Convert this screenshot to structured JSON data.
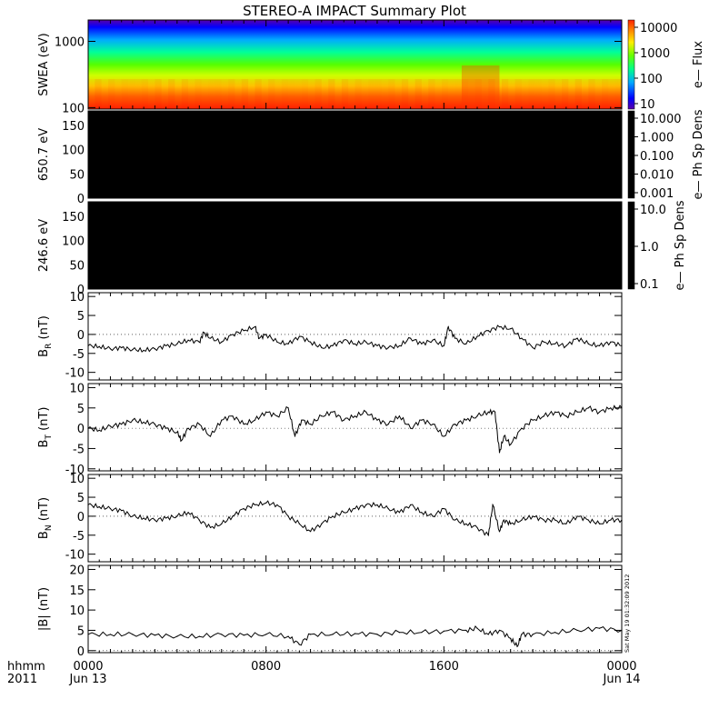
{
  "title": "STEREO-A IMPACT Summary Plot",
  "timestamp": "Sat May 19 01:32:09 2012",
  "time_axis": {
    "row1_label": "hhmm",
    "row2_label": "2011",
    "ticks": [
      {
        "hour": 0,
        "line1": "0000",
        "line2": "Jun 13"
      },
      {
        "hour": 8,
        "line1": "0800",
        "line2": ""
      },
      {
        "hour": 16,
        "line1": "1600",
        "line2": ""
      },
      {
        "hour": 24,
        "line1": "0000",
        "line2": "Jun 14"
      }
    ],
    "range_hours": [
      0,
      24
    ]
  },
  "colorbars": {
    "swea": {
      "label": "e— Flux",
      "ticks": [
        "10000",
        "1000",
        "100",
        "10"
      ]
    },
    "pad650": {
      "label": "e— Ph Sp Dens",
      "ticks": [
        "10.000",
        "1.000",
        "0.100",
        "0.010",
        "0.001"
      ]
    },
    "pad246": {
      "label": "e— Ph Sp Dens",
      "ticks": [
        "10.0",
        "1.0",
        "0.1"
      ]
    }
  },
  "colors": {
    "spectrogram_black": "#000000",
    "line": "#000000",
    "rainbow": [
      "#7a00b8",
      "#0000ff",
      "#00b4ff",
      "#00ff88",
      "#66ff00",
      "#e6ff00",
      "#ffaa00",
      "#ff3300"
    ]
  },
  "chart_data": [
    {
      "type": "heatmap",
      "panel": "swea",
      "ylabel": "SWEA (eV)",
      "yscale": "log",
      "ylim": [
        95,
        2100
      ],
      "yticks": [
        "100",
        "1000"
      ],
      "note": "energy spectrogram, flux colour-coded"
    },
    {
      "type": "heatmap",
      "panel": "pad650",
      "ylabel": "650.7 eV",
      "ylim": [
        0,
        180
      ],
      "yticks": [
        "0",
        "50",
        "100",
        "150"
      ]
    },
    {
      "type": "heatmap",
      "panel": "pad246",
      "ylabel": "246.6 eV",
      "ylim": [
        0,
        180
      ],
      "yticks": [
        "0",
        "50",
        "100",
        "150"
      ]
    },
    {
      "type": "line",
      "panel": "br",
      "ylabel": "B",
      "ylabel_sub": "R",
      "ylabel_unit": " (nT)",
      "ylim": [
        -12,
        11
      ],
      "yticks": [
        "-10",
        "-5",
        "0",
        "5",
        "10"
      ],
      "x": [
        0,
        0.5,
        1,
        1.5,
        2,
        2.5,
        3,
        3.5,
        4,
        4.5,
        5,
        5.2,
        5.5,
        6,
        6.5,
        7,
        7.5,
        7.7,
        8,
        8.5,
        9,
        9.5,
        10,
        10.5,
        11,
        11.5,
        12,
        12.5,
        13,
        13.5,
        14,
        14.5,
        15,
        15.5,
        16,
        16.2,
        16.5,
        17,
        17.5,
        18,
        18.5,
        19,
        19.5,
        20,
        20.5,
        21,
        21.5,
        22,
        22.5,
        23,
        23.5,
        24
      ],
      "y": [
        -3,
        -3.2,
        -3.8,
        -3.5,
        -4,
        -4.2,
        -3.8,
        -3,
        -2.5,
        -1.5,
        -2,
        0.5,
        -1,
        -2,
        0,
        1,
        2,
        -1,
        0,
        -2,
        -2.5,
        -0.5,
        -2,
        -3.5,
        -3,
        -1.5,
        -2.5,
        -2,
        -3,
        -3.5,
        -3,
        -1,
        -2.5,
        -1.5,
        -3,
        2,
        -1,
        -2.5,
        -0.5,
        1,
        2,
        1.5,
        -1,
        -3.5,
        -2,
        -2.5,
        -3,
        -1,
        -2.5,
        -3,
        -2,
        -3
      ]
    },
    {
      "type": "line",
      "panel": "bt",
      "ylabel": "B",
      "ylabel_sub": "T",
      "ylabel_unit": " (nT)",
      "ylim": [
        -10.5,
        11
      ],
      "yticks": [
        "-10",
        "-5",
        "0",
        "5",
        "10"
      ],
      "x": [
        0,
        0.5,
        1,
        1.5,
        2,
        2.5,
        3,
        3.5,
        4,
        4.2,
        4.5,
        5,
        5.5,
        6,
        6.5,
        7,
        7.5,
        8,
        8.5,
        9,
        9.3,
        9.6,
        10,
        10.5,
        11,
        11.5,
        12,
        12.5,
        13,
        13.5,
        14,
        14.5,
        15,
        15.5,
        16,
        16.5,
        17,
        17.5,
        18,
        18.3,
        18.5,
        18.7,
        19,
        19.5,
        20,
        20.5,
        21,
        21.5,
        22,
        22.5,
        23,
        23.5,
        24
      ],
      "y": [
        0,
        -0.5,
        0.5,
        1,
        2,
        1.5,
        1,
        0,
        -1,
        -3,
        0,
        1,
        -2,
        2,
        3,
        1,
        2,
        4,
        3,
        5,
        -2,
        2,
        1,
        3,
        4,
        2,
        3,
        4,
        2,
        1,
        3,
        0,
        2,
        1,
        -2,
        1,
        2,
        3,
        4,
        4,
        -6,
        -2,
        -4,
        0,
        2,
        3,
        4,
        3,
        4,
        5,
        4,
        5,
        5
      ]
    },
    {
      "type": "line",
      "panel": "bn",
      "ylabel": "B",
      "ylabel_sub": "N",
      "ylabel_unit": " (nT)",
      "ylim": [
        -12,
        11
      ],
      "yticks": [
        "-10",
        "-5",
        "0",
        "5",
        "10"
      ],
      "x": [
        0,
        0.5,
        1,
        1.5,
        2,
        2.5,
        3,
        3.5,
        4,
        4.5,
        5,
        5.5,
        6,
        6.5,
        7,
        7.5,
        8,
        8.5,
        9,
        9.5,
        10,
        10.5,
        11,
        11.5,
        12,
        12.5,
        13,
        13.5,
        14,
        14.5,
        15,
        15.5,
        16,
        16.5,
        17,
        17.5,
        18,
        18.2,
        18.5,
        18.7,
        19,
        19.5,
        20,
        20.5,
        21,
        21.5,
        22,
        22.5,
        23,
        23.5,
        24
      ],
      "y": [
        3,
        2.5,
        2,
        1.5,
        0,
        -0.5,
        -1,
        -0.5,
        0,
        1,
        -1,
        -3,
        -2,
        0,
        2,
        3,
        3.5,
        3,
        0,
        -2,
        -4,
        -2,
        0,
        1,
        2,
        3,
        3,
        2,
        1,
        3,
        1,
        0,
        2,
        -1,
        -2,
        -3,
        -5,
        3,
        -4,
        -1,
        -2,
        -1,
        0,
        -1,
        -1,
        -2,
        0,
        -1,
        -2,
        -1,
        -1
      ]
    },
    {
      "type": "line",
      "panel": "b",
      "ylabel": "|B| (nT)",
      "ylim": [
        -0.5,
        21
      ],
      "yticks": [
        "0",
        "5",
        "10",
        "15",
        "20"
      ],
      "x": [
        0,
        1,
        2,
        3,
        4,
        5,
        6,
        7,
        8,
        9,
        9.5,
        10,
        11,
        12,
        13,
        14,
        15,
        16,
        17,
        17.5,
        18,
        18.5,
        19,
        19.3,
        19.5,
        20,
        21,
        22,
        23,
        24
      ],
      "y": [
        4,
        4,
        4,
        3.8,
        3.5,
        3.5,
        4,
        3.8,
        4,
        3.5,
        1.5,
        4,
        4,
        4.2,
        4,
        4.5,
        4.5,
        4.8,
        5,
        5.5,
        4,
        5,
        3,
        1,
        4,
        4,
        4.5,
        5,
        5.5,
        5
      ]
    }
  ]
}
